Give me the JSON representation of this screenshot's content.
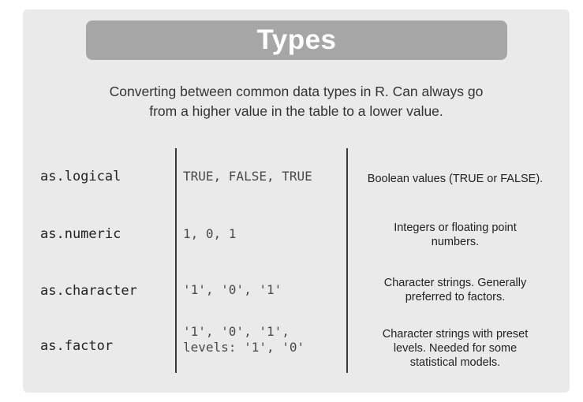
{
  "title": "Types",
  "subtitle": {
    "line1": "Converting between common data types in R. Can always go",
    "line2": "from a higher value in the table to a lower value."
  },
  "rows": [
    {
      "function": "as.logical",
      "example_lines": [
        "TRUE, FALSE, TRUE"
      ],
      "description_lines": [
        "Boolean values (TRUE or FALSE)."
      ]
    },
    {
      "function": "as.numeric",
      "example_lines": [
        "1, 0, 1"
      ],
      "description_lines": [
        "Integers or floating point",
        "numbers."
      ]
    },
    {
      "function": "as.character",
      "example_lines": [
        "'1', '0', '1'"
      ],
      "description_lines": [
        "Character strings. Generally",
        "preferred to factors."
      ]
    },
    {
      "function": "as.factor",
      "example_lines": [
        "'1', '0', '1',",
        "levels: '1', '0'"
      ],
      "description_lines": [
        "Character strings with preset",
        "levels. Needed for some",
        "statistical models."
      ]
    }
  ]
}
